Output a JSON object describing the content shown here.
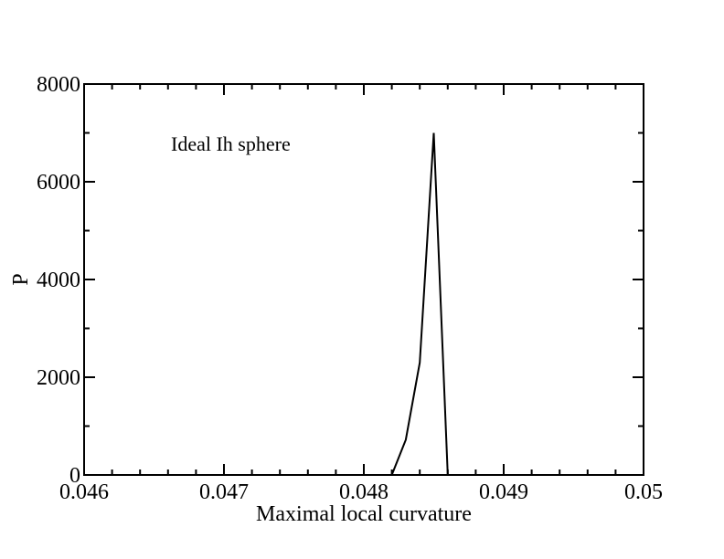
{
  "chart_data": {
    "type": "line",
    "title": "",
    "xlabel": "Maximal local curvature",
    "ylabel": "P",
    "xlim": [
      0.046,
      0.05
    ],
    "ylim": [
      0,
      8000
    ],
    "x_ticks": [
      "0.046",
      "0.047",
      "0.048",
      "0.049",
      "0.05"
    ],
    "y_ticks": [
      "0",
      "2000",
      "4000",
      "6000",
      "8000"
    ],
    "x_tick_values": [
      0.046,
      0.047,
      0.048,
      0.049,
      0.05
    ],
    "y_tick_values": [
      0,
      2000,
      4000,
      6000,
      8000
    ],
    "x_minor_step": 0.0002,
    "y_minor_step": 1000,
    "grid": false,
    "legend": "none",
    "annotation": "Ideal Ih sphere",
    "series": [
      {
        "color": "#000000",
        "x": [
          0.0482,
          0.0483,
          0.0484,
          0.0485,
          0.0486
        ],
        "y": [
          0,
          720,
          2300,
          7000,
          0
        ]
      }
    ]
  }
}
